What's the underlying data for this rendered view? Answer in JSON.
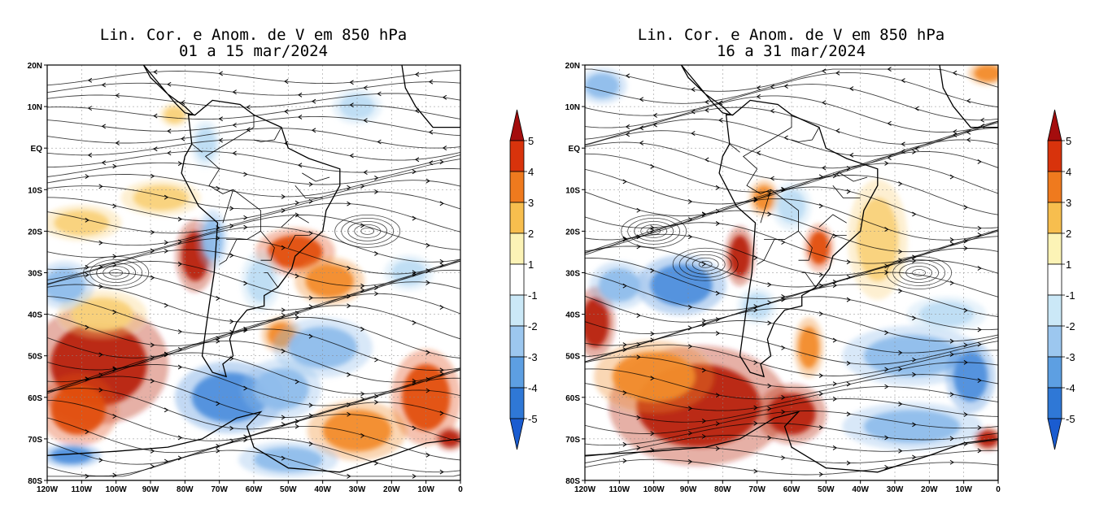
{
  "panels": [
    {
      "id": "left",
      "title_line1": "Lin. Cor. e Anom. de V em 850 hPa",
      "title_line2": "01 a 15 mar/2024",
      "anomaly_patches": [
        {
          "lon": -105,
          "lat": -52,
          "rx": 14,
          "ry": 10,
          "value": 5
        },
        {
          "lon": -111,
          "lat": -63,
          "rx": 8,
          "ry": 6,
          "value": 4
        },
        {
          "lon": -77,
          "lat": -26,
          "rx": 4,
          "ry": 6,
          "value": 5
        },
        {
          "lon": -48,
          "lat": -25,
          "rx": 8,
          "ry": 4,
          "value": 4
        },
        {
          "lon": -38,
          "lat": -32,
          "rx": 7,
          "ry": 4,
          "value": 3
        },
        {
          "lon": -10,
          "lat": -60,
          "rx": 7,
          "ry": 8,
          "value": 4
        },
        {
          "lon": -3,
          "lat": -70,
          "rx": 3,
          "ry": 2,
          "value": 5
        },
        {
          "lon": -30,
          "lat": -68,
          "rx": 10,
          "ry": 5,
          "value": 3
        },
        {
          "lon": -52,
          "lat": -45,
          "rx": 4,
          "ry": 3,
          "value": 3
        },
        {
          "lon": -104,
          "lat": -40,
          "rx": 9,
          "ry": 4,
          "value": 2
        },
        {
          "lon": -87,
          "lat": -12,
          "rx": 8,
          "ry": 3,
          "value": 2
        },
        {
          "lon": -110,
          "lat": -18,
          "rx": 8,
          "ry": 3,
          "value": 2
        },
        {
          "lon": -72,
          "lat": -22,
          "rx": 3,
          "ry": 5,
          "value": -3
        },
        {
          "lon": -58,
          "lat": -32,
          "rx": 4,
          "ry": 5,
          "value": -2
        },
        {
          "lon": -67,
          "lat": -60,
          "rx": 11,
          "ry": 6,
          "value": -4
        },
        {
          "lon": -52,
          "lat": -58,
          "rx": 8,
          "ry": 5,
          "value": -3
        },
        {
          "lon": -40,
          "lat": -48,
          "rx": 10,
          "ry": 5,
          "value": -3
        },
        {
          "lon": -15,
          "lat": -30,
          "rx": 5,
          "ry": 3,
          "value": -2
        },
        {
          "lon": -115,
          "lat": -33,
          "rx": 6,
          "ry": 4,
          "value": -3
        },
        {
          "lon": -50,
          "lat": -75,
          "rx": 10,
          "ry": 3,
          "value": -3
        },
        {
          "lon": -113,
          "lat": -74,
          "rx": 6,
          "ry": 2,
          "value": -4
        },
        {
          "lon": -74,
          "lat": 1,
          "rx": 3,
          "ry": 4,
          "value": -2
        },
        {
          "lon": -30,
          "lat": 10,
          "rx": 5,
          "ry": 3,
          "value": -2
        },
        {
          "lon": -83,
          "lat": 8,
          "rx": 3,
          "ry": 2,
          "value": 2
        }
      ]
    },
    {
      "id": "right",
      "title_line1": "Lin. Cor. e Anom. de V em 850 hPa",
      "title_line2": "16 a 31 mar/2024",
      "anomaly_patches": [
        {
          "lon": -87,
          "lat": -62,
          "rx": 18,
          "ry": 10,
          "value": 5
        },
        {
          "lon": -60,
          "lat": -64,
          "rx": 7,
          "ry": 5,
          "value": 5
        },
        {
          "lon": -117,
          "lat": -42,
          "rx": 4,
          "ry": 6,
          "value": 5
        },
        {
          "lon": -75,
          "lat": -26,
          "rx": 3,
          "ry": 5,
          "value": 5
        },
        {
          "lon": -68,
          "lat": -12,
          "rx": 3,
          "ry": 3,
          "value": 3
        },
        {
          "lon": -52,
          "lat": -24,
          "rx": 3,
          "ry": 4,
          "value": 4
        },
        {
          "lon": -3,
          "lat": -70,
          "rx": 3,
          "ry": 2,
          "value": 5
        },
        {
          "lon": -100,
          "lat": -55,
          "rx": 12,
          "ry": 6,
          "value": 3
        },
        {
          "lon": -35,
          "lat": -22,
          "rx": 6,
          "ry": 10,
          "value": 2
        },
        {
          "lon": -55,
          "lat": -48,
          "rx": 3,
          "ry": 5,
          "value": 3
        },
        {
          "lon": -3,
          "lat": 18,
          "rx": 4,
          "ry": 2,
          "value": 3
        },
        {
          "lon": -92,
          "lat": -33,
          "rx": 9,
          "ry": 5,
          "value": -4
        },
        {
          "lon": -110,
          "lat": -33,
          "rx": 6,
          "ry": 4,
          "value": -3
        },
        {
          "lon": -25,
          "lat": -50,
          "rx": 14,
          "ry": 5,
          "value": -3
        },
        {
          "lon": -25,
          "lat": -67,
          "rx": 14,
          "ry": 4,
          "value": -3
        },
        {
          "lon": -15,
          "lat": -40,
          "rx": 8,
          "ry": 3,
          "value": -2
        },
        {
          "lon": -8,
          "lat": -55,
          "rx": 5,
          "ry": 6,
          "value": -4
        },
        {
          "lon": -115,
          "lat": 15,
          "rx": 5,
          "ry": 3,
          "value": -3
        },
        {
          "lon": -70,
          "lat": -38,
          "rx": 4,
          "ry": 3,
          "value": -2
        },
        {
          "lon": -60,
          "lat": -14,
          "rx": 4,
          "ry": 4,
          "value": -2
        }
      ]
    }
  ],
  "axis": {
    "lat_labels": [
      "20N",
      "10N",
      "EQ",
      "10S",
      "20S",
      "30S",
      "40S",
      "50S",
      "60S",
      "70S",
      "80S"
    ],
    "lat_values": [
      20,
      10,
      0,
      -10,
      -20,
      -30,
      -40,
      -50,
      -60,
      -70,
      -80
    ],
    "lon_labels": [
      "120W",
      "110W",
      "100W",
      "90W",
      "80W",
      "70W",
      "60W",
      "50W",
      "40W",
      "30W",
      "20W",
      "10W",
      "0"
    ],
    "lon_values": [
      -120,
      -110,
      -100,
      -90,
      -80,
      -70,
      -60,
      -50,
      -40,
      -30,
      -20,
      -10,
      0
    ]
  },
  "colorbar": {
    "labels": [
      "5",
      "4",
      "3",
      "2",
      "1",
      "-1",
      "-2",
      "-3",
      "-4",
      "-5"
    ],
    "colors": [
      "#a40d0d",
      "#d8330c",
      "#ef7a1e",
      "#f7be4e",
      "#fcf3b6",
      "#ffffff",
      "#cbe8f7",
      "#9cc7ef",
      "#5d9fe2",
      "#2f78d6",
      "#1a5cd0"
    ]
  },
  "level_colors": {
    "5": "#b8230b",
    "4": "#e24f12",
    "3": "#f28c2a",
    "2": "#f9d27a",
    "-2": "#bcdcf3",
    "-3": "#8ebceb",
    "-4": "#4f8fdc"
  },
  "land_color": "#000000"
}
